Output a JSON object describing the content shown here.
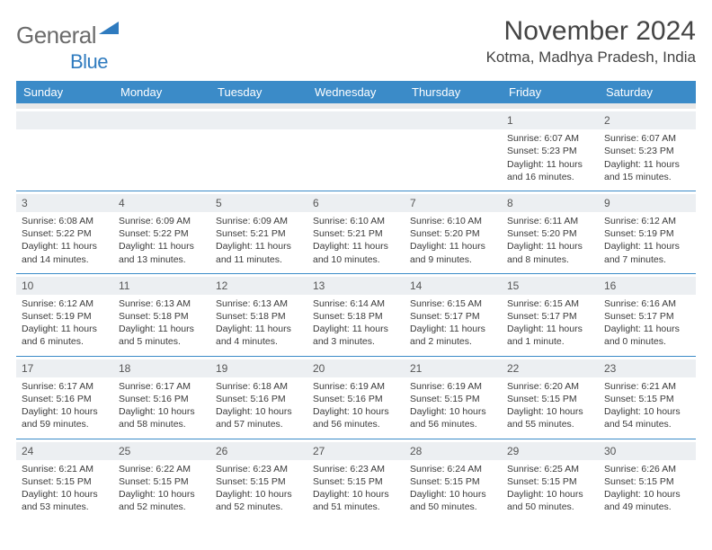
{
  "logo": {
    "word1": "General",
    "word2": "Blue"
  },
  "title": "November 2024",
  "location": "Kotma, Madhya Pradesh, India",
  "colors": {
    "header_bg": "#3b8bc8",
    "header_text": "#ffffff",
    "daynum_bg": "#eceff2",
    "week_border": "#3b8bc8",
    "body_text": "#3a3a3a",
    "title_text": "#444444",
    "logo_gray": "#6b6b6b",
    "logo_blue": "#2f7bbf"
  },
  "day_headers": [
    "Sunday",
    "Monday",
    "Tuesday",
    "Wednesday",
    "Thursday",
    "Friday",
    "Saturday"
  ],
  "weeks": [
    [
      {
        "n": "",
        "sr": "",
        "ss": "",
        "dl": ""
      },
      {
        "n": "",
        "sr": "",
        "ss": "",
        "dl": ""
      },
      {
        "n": "",
        "sr": "",
        "ss": "",
        "dl": ""
      },
      {
        "n": "",
        "sr": "",
        "ss": "",
        "dl": ""
      },
      {
        "n": "",
        "sr": "",
        "ss": "",
        "dl": ""
      },
      {
        "n": "1",
        "sr": "Sunrise: 6:07 AM",
        "ss": "Sunset: 5:23 PM",
        "dl": "Daylight: 11 hours and 16 minutes."
      },
      {
        "n": "2",
        "sr": "Sunrise: 6:07 AM",
        "ss": "Sunset: 5:23 PM",
        "dl": "Daylight: 11 hours and 15 minutes."
      }
    ],
    [
      {
        "n": "3",
        "sr": "Sunrise: 6:08 AM",
        "ss": "Sunset: 5:22 PM",
        "dl": "Daylight: 11 hours and 14 minutes."
      },
      {
        "n": "4",
        "sr": "Sunrise: 6:09 AM",
        "ss": "Sunset: 5:22 PM",
        "dl": "Daylight: 11 hours and 13 minutes."
      },
      {
        "n": "5",
        "sr": "Sunrise: 6:09 AM",
        "ss": "Sunset: 5:21 PM",
        "dl": "Daylight: 11 hours and 11 minutes."
      },
      {
        "n": "6",
        "sr": "Sunrise: 6:10 AM",
        "ss": "Sunset: 5:21 PM",
        "dl": "Daylight: 11 hours and 10 minutes."
      },
      {
        "n": "7",
        "sr": "Sunrise: 6:10 AM",
        "ss": "Sunset: 5:20 PM",
        "dl": "Daylight: 11 hours and 9 minutes."
      },
      {
        "n": "8",
        "sr": "Sunrise: 6:11 AM",
        "ss": "Sunset: 5:20 PM",
        "dl": "Daylight: 11 hours and 8 minutes."
      },
      {
        "n": "9",
        "sr": "Sunrise: 6:12 AM",
        "ss": "Sunset: 5:19 PM",
        "dl": "Daylight: 11 hours and 7 minutes."
      }
    ],
    [
      {
        "n": "10",
        "sr": "Sunrise: 6:12 AM",
        "ss": "Sunset: 5:19 PM",
        "dl": "Daylight: 11 hours and 6 minutes."
      },
      {
        "n": "11",
        "sr": "Sunrise: 6:13 AM",
        "ss": "Sunset: 5:18 PM",
        "dl": "Daylight: 11 hours and 5 minutes."
      },
      {
        "n": "12",
        "sr": "Sunrise: 6:13 AM",
        "ss": "Sunset: 5:18 PM",
        "dl": "Daylight: 11 hours and 4 minutes."
      },
      {
        "n": "13",
        "sr": "Sunrise: 6:14 AM",
        "ss": "Sunset: 5:18 PM",
        "dl": "Daylight: 11 hours and 3 minutes."
      },
      {
        "n": "14",
        "sr": "Sunrise: 6:15 AM",
        "ss": "Sunset: 5:17 PM",
        "dl": "Daylight: 11 hours and 2 minutes."
      },
      {
        "n": "15",
        "sr": "Sunrise: 6:15 AM",
        "ss": "Sunset: 5:17 PM",
        "dl": "Daylight: 11 hours and 1 minute."
      },
      {
        "n": "16",
        "sr": "Sunrise: 6:16 AM",
        "ss": "Sunset: 5:17 PM",
        "dl": "Daylight: 11 hours and 0 minutes."
      }
    ],
    [
      {
        "n": "17",
        "sr": "Sunrise: 6:17 AM",
        "ss": "Sunset: 5:16 PM",
        "dl": "Daylight: 10 hours and 59 minutes."
      },
      {
        "n": "18",
        "sr": "Sunrise: 6:17 AM",
        "ss": "Sunset: 5:16 PM",
        "dl": "Daylight: 10 hours and 58 minutes."
      },
      {
        "n": "19",
        "sr": "Sunrise: 6:18 AM",
        "ss": "Sunset: 5:16 PM",
        "dl": "Daylight: 10 hours and 57 minutes."
      },
      {
        "n": "20",
        "sr": "Sunrise: 6:19 AM",
        "ss": "Sunset: 5:16 PM",
        "dl": "Daylight: 10 hours and 56 minutes."
      },
      {
        "n": "21",
        "sr": "Sunrise: 6:19 AM",
        "ss": "Sunset: 5:15 PM",
        "dl": "Daylight: 10 hours and 56 minutes."
      },
      {
        "n": "22",
        "sr": "Sunrise: 6:20 AM",
        "ss": "Sunset: 5:15 PM",
        "dl": "Daylight: 10 hours and 55 minutes."
      },
      {
        "n": "23",
        "sr": "Sunrise: 6:21 AM",
        "ss": "Sunset: 5:15 PM",
        "dl": "Daylight: 10 hours and 54 minutes."
      }
    ],
    [
      {
        "n": "24",
        "sr": "Sunrise: 6:21 AM",
        "ss": "Sunset: 5:15 PM",
        "dl": "Daylight: 10 hours and 53 minutes."
      },
      {
        "n": "25",
        "sr": "Sunrise: 6:22 AM",
        "ss": "Sunset: 5:15 PM",
        "dl": "Daylight: 10 hours and 52 minutes."
      },
      {
        "n": "26",
        "sr": "Sunrise: 6:23 AM",
        "ss": "Sunset: 5:15 PM",
        "dl": "Daylight: 10 hours and 52 minutes."
      },
      {
        "n": "27",
        "sr": "Sunrise: 6:23 AM",
        "ss": "Sunset: 5:15 PM",
        "dl": "Daylight: 10 hours and 51 minutes."
      },
      {
        "n": "28",
        "sr": "Sunrise: 6:24 AM",
        "ss": "Sunset: 5:15 PM",
        "dl": "Daylight: 10 hours and 50 minutes."
      },
      {
        "n": "29",
        "sr": "Sunrise: 6:25 AM",
        "ss": "Sunset: 5:15 PM",
        "dl": "Daylight: 10 hours and 50 minutes."
      },
      {
        "n": "30",
        "sr": "Sunrise: 6:26 AM",
        "ss": "Sunset: 5:15 PM",
        "dl": "Daylight: 10 hours and 49 minutes."
      }
    ]
  ]
}
